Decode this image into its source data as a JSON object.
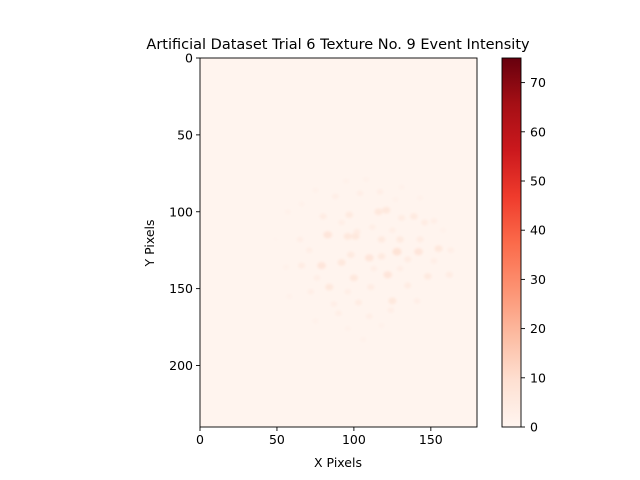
{
  "chart_data": {
    "type": "heatmap",
    "title": "Artificial Dataset Trial 6 Texture No. 9 Event Intensity",
    "xlabel": "X Pixels",
    "ylabel": "Y Pixels",
    "xlim": [
      0,
      180
    ],
    "ylim": [
      240,
      0
    ],
    "x_ticks": [
      0,
      50,
      100,
      150
    ],
    "y_ticks": [
      0,
      50,
      100,
      150,
      200
    ],
    "colorbar": {
      "colormap": "Reds",
      "range": [
        0,
        75
      ],
      "ticks": [
        0,
        10,
        20,
        30,
        40,
        50,
        60,
        70
      ]
    },
    "background_value": 0.5,
    "hotspots": [
      {
        "x": 121,
        "y": 99,
        "value": 6
      },
      {
        "x": 116,
        "y": 100,
        "value": 6
      },
      {
        "x": 97,
        "y": 102,
        "value": 5
      },
      {
        "x": 139,
        "y": 103,
        "value": 5
      },
      {
        "x": 80,
        "y": 103,
        "value": 4
      },
      {
        "x": 131,
        "y": 104,
        "value": 4
      },
      {
        "x": 146,
        "y": 107,
        "value": 4
      },
      {
        "x": 152,
        "y": 106,
        "value": 3
      },
      {
        "x": 102,
        "y": 113,
        "value": 4
      },
      {
        "x": 83,
        "y": 115,
        "value": 7
      },
      {
        "x": 96,
        "y": 116,
        "value": 6
      },
      {
        "x": 101,
        "y": 116,
        "value": 6
      },
      {
        "x": 118,
        "y": 118,
        "value": 5
      },
      {
        "x": 130,
        "y": 118,
        "value": 5
      },
      {
        "x": 143,
        "y": 118,
        "value": 4
      },
      {
        "x": 65,
        "y": 118,
        "value": 3
      },
      {
        "x": 128,
        "y": 126,
        "value": 8
      },
      {
        "x": 110,
        "y": 130,
        "value": 7
      },
      {
        "x": 118,
        "y": 129,
        "value": 5
      },
      {
        "x": 142,
        "y": 126,
        "value": 7
      },
      {
        "x": 155,
        "y": 124,
        "value": 6
      },
      {
        "x": 98,
        "y": 128,
        "value": 5
      },
      {
        "x": 92,
        "y": 133,
        "value": 6
      },
      {
        "x": 79,
        "y": 135,
        "value": 7
      },
      {
        "x": 66,
        "y": 135,
        "value": 4
      },
      {
        "x": 135,
        "y": 131,
        "value": 4
      },
      {
        "x": 100,
        "y": 143,
        "value": 6
      },
      {
        "x": 122,
        "y": 141,
        "value": 7
      },
      {
        "x": 148,
        "y": 142,
        "value": 5
      },
      {
        "x": 162,
        "y": 141,
        "value": 4
      },
      {
        "x": 84,
        "y": 149,
        "value": 6
      },
      {
        "x": 111,
        "y": 149,
        "value": 4
      },
      {
        "x": 135,
        "y": 148,
        "value": 4
      },
      {
        "x": 72,
        "y": 152,
        "value": 3
      },
      {
        "x": 125,
        "y": 158,
        "value": 6
      },
      {
        "x": 103,
        "y": 159,
        "value": 4
      },
      {
        "x": 87,
        "y": 160,
        "value": 3
      },
      {
        "x": 141,
        "y": 158,
        "value": 3
      },
      {
        "x": 90,
        "y": 166,
        "value": 3
      },
      {
        "x": 110,
        "y": 168,
        "value": 3
      },
      {
        "x": 124,
        "y": 164,
        "value": 3
      },
      {
        "x": 75,
        "y": 171,
        "value": 2
      },
      {
        "x": 96,
        "y": 176,
        "value": 2
      },
      {
        "x": 118,
        "y": 174,
        "value": 2
      },
      {
        "x": 106,
        "y": 183,
        "value": 2
      },
      {
        "x": 58,
        "y": 155,
        "value": 2
      },
      {
        "x": 56,
        "y": 136,
        "value": 2
      },
      {
        "x": 57,
        "y": 100,
        "value": 2
      },
      {
        "x": 71,
        "y": 125,
        "value": 3
      },
      {
        "x": 163,
        "y": 125,
        "value": 3
      },
      {
        "x": 104,
        "y": 88,
        "value": 3
      },
      {
        "x": 88,
        "y": 90,
        "value": 3
      },
      {
        "x": 117,
        "y": 87,
        "value": 3
      },
      {
        "x": 127,
        "y": 92,
        "value": 2
      },
      {
        "x": 75,
        "y": 86,
        "value": 2
      },
      {
        "x": 95,
        "y": 80,
        "value": 2
      },
      {
        "x": 108,
        "y": 79,
        "value": 2
      },
      {
        "x": 131,
        "y": 84,
        "value": 2
      },
      {
        "x": 143,
        "y": 91,
        "value": 2
      },
      {
        "x": 66,
        "y": 95,
        "value": 2
      },
      {
        "x": 158,
        "y": 112,
        "value": 2
      },
      {
        "x": 49,
        "y": 118,
        "value": 1
      },
      {
        "x": 92,
        "y": 107,
        "value": 3
      },
      {
        "x": 112,
        "y": 110,
        "value": 3
      },
      {
        "x": 125,
        "y": 112,
        "value": 3
      },
      {
        "x": 76,
        "y": 143,
        "value": 3
      },
      {
        "x": 130,
        "y": 137,
        "value": 3
      },
      {
        "x": 113,
        "y": 137,
        "value": 3
      },
      {
        "x": 96,
        "y": 152,
        "value": 3
      },
      {
        "x": 152,
        "y": 132,
        "value": 3
      }
    ]
  }
}
